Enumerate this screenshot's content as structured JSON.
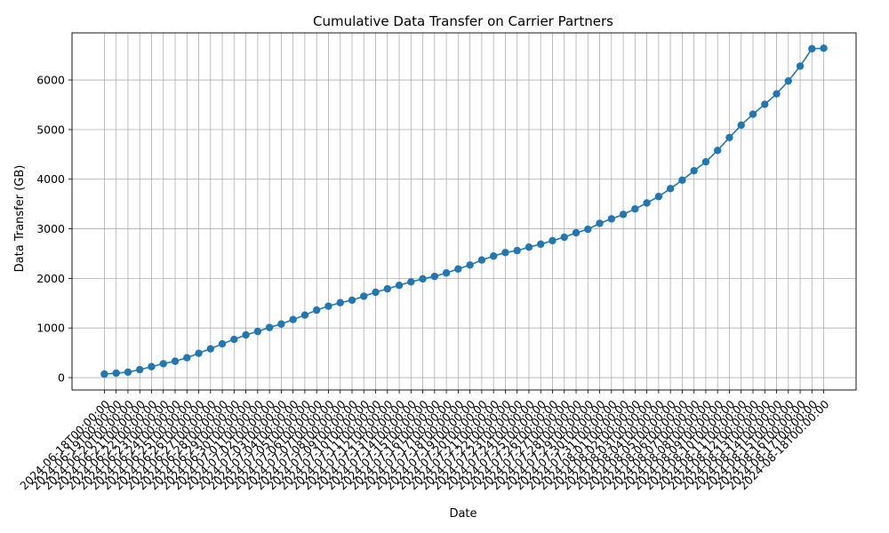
{
  "chart_data": {
    "type": "line",
    "title": "Cumulative Data Transfer on Carrier Partners",
    "xlabel": "Date",
    "ylabel": "Data Transfer (GB)",
    "ylim": [
      -250,
      6950
    ],
    "yticks": [
      0,
      1000,
      2000,
      3000,
      4000,
      5000,
      6000
    ],
    "grid": true,
    "marker": "circle",
    "line_color": "#1f77b4",
    "x": [
      "2024-06-18T00:00:00",
      "2024-06-19T00:00:00",
      "2024-06-20T00:00:00",
      "2024-06-21T00:00:00",
      "2024-06-22T00:00:00",
      "2024-06-23T00:00:00",
      "2024-06-24T00:00:00",
      "2024-06-25T00:00:00",
      "2024-06-26T00:00:00",
      "2024-06-27T00:00:00",
      "2024-06-28T00:00:00",
      "2024-06-29T00:00:00",
      "2024-06-30T00:00:00",
      "2024-07-01T00:00:00",
      "2024-07-02T00:00:00",
      "2024-07-03T00:00:00",
      "2024-07-04T00:00:00",
      "2024-07-05T00:00:00",
      "2024-07-06T00:00:00",
      "2024-07-07T00:00:00",
      "2024-07-08T00:00:00",
      "2024-07-09T00:00:00",
      "2024-07-10T00:00:00",
      "2024-07-11T00:00:00",
      "2024-07-12T00:00:00",
      "2024-07-13T00:00:00",
      "2024-07-14T00:00:00",
      "2024-07-15T00:00:00",
      "2024-07-16T00:00:00",
      "2024-07-17T00:00:00",
      "2024-07-18T00:00:00",
      "2024-07-19T00:00:00",
      "2024-07-20T00:00:00",
      "2024-07-21T00:00:00",
      "2024-07-22T00:00:00",
      "2024-07-23T00:00:00",
      "2024-07-24T00:00:00",
      "2024-07-25T00:00:00",
      "2024-07-26T00:00:00",
      "2024-07-27T00:00:00",
      "2024-07-28T00:00:00",
      "2024-07-29T00:00:00",
      "2024-07-30T00:00:00",
      "2024-07-31T00:00:00",
      "2024-08-01T00:00:00",
      "2024-08-02T00:00:00",
      "2024-08-03T00:00:00",
      "2024-08-04T00:00:00",
      "2024-08-05T00:00:00",
      "2024-08-06T00:00:00",
      "2024-08-07T00:00:00",
      "2024-08-08T00:00:00",
      "2024-08-09T00:00:00",
      "2024-08-10T00:00:00",
      "2024-08-11T00:00:00",
      "2024-08-12T00:00:00",
      "2024-08-13T00:00:00",
      "2024-08-14T00:00:00",
      "2024-08-15T00:00:00",
      "2024-08-16T00:00:00",
      "2024-08-17T00:00:00",
      "2024-08-18T00:00:00"
    ],
    "y": [
      70,
      90,
      110,
      160,
      220,
      280,
      330,
      400,
      490,
      580,
      680,
      770,
      860,
      930,
      1010,
      1080,
      1170,
      1260,
      1360,
      1440,
      1510,
      1560,
      1640,
      1720,
      1790,
      1860,
      1930,
      1990,
      2040,
      2110,
      2190,
      2270,
      2370,
      2450,
      2520,
      2560,
      2630,
      2690,
      2760,
      2830,
      2920,
      2990,
      3110,
      3200,
      3290,
      3400,
      3520,
      3650,
      3810,
      3980,
      4170,
      4350,
      4580,
      4840,
      5090,
      5310,
      5510,
      5720,
      5980,
      6280,
      6630,
      6640
    ]
  }
}
